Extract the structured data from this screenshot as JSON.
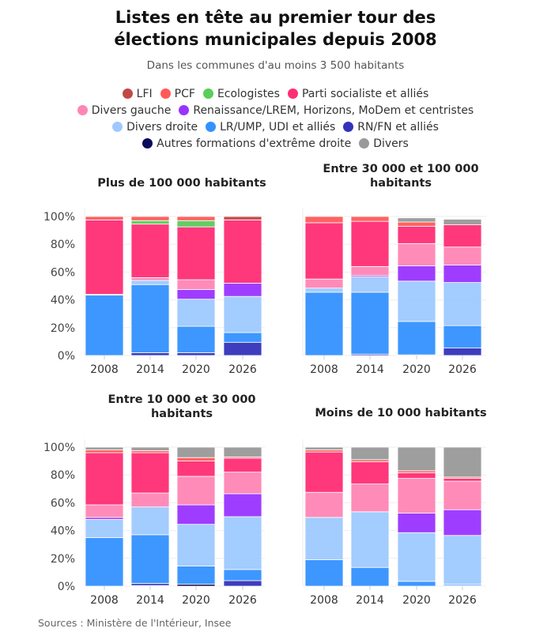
{
  "title": "Listes en tête au premier tour des élections municipales depuis 2008",
  "title_lines": [
    "Listes en tête au premier tour des",
    "élections municipales depuis 2008"
  ],
  "subtitle": "Dans les communes d'au moins 3 500 habitants",
  "source": "Sources : Ministère de l'Intérieur, Insee",
  "legend_rows": [
    [
      0,
      1,
      2,
      3
    ],
    [
      4,
      5
    ],
    [
      6,
      7,
      8
    ],
    [
      9,
      10
    ]
  ],
  "chart_data": {
    "type": "bar",
    "stacked": true,
    "categories": [
      "2008",
      "2014",
      "2020",
      "2026"
    ],
    "y_ticks": [
      "0%",
      "20%",
      "40%",
      "60%",
      "80%",
      "100%"
    ],
    "ylim": [
      0,
      100
    ],
    "series": [
      {
        "name": "Autres formations d'extrême droite",
        "color": "#0b0b5c"
      },
      {
        "name": "RN/FN et alliés",
        "color": "#3333bb"
      },
      {
        "name": "LR/UMP, UDI et alliés",
        "color": "#3392ff"
      },
      {
        "name": "Divers droite",
        "color": "#9fcaff"
      },
      {
        "name": "Renaissance/LREM, Horizons, MoDem et centristes",
        "color": "#9933ff"
      },
      {
        "name": "Divers gauche",
        "color": "#ff85b6"
      },
      {
        "name": "Parti socialiste et alliés",
        "color": "#ff2e74"
      },
      {
        "name": "Ecologistes",
        "color": "#5acd5a"
      },
      {
        "name": "PCF",
        "color": "#ff5a5a"
      },
      {
        "name": "LFI",
        "color": "#c24848"
      },
      {
        "name": "Divers",
        "color": "#999999"
      }
    ],
    "legend_order": [
      9,
      8,
      7,
      6,
      5,
      4,
      3,
      2,
      1,
      0,
      10
    ],
    "panels": [
      {
        "title": [
          "Plus de 100 000 habitants"
        ],
        "values": [
          [
            0,
            0,
            43.5,
            0.5,
            0,
            0,
            53.5,
            0,
            2.5,
            0,
            0
          ],
          [
            0,
            2,
            49,
            3,
            0,
            2,
            38.5,
            2.5,
            3,
            0,
            0
          ],
          [
            0,
            2,
            19,
            19.5,
            7,
            7,
            38,
            4.5,
            3,
            0,
            0
          ],
          [
            0,
            9.5,
            7,
            26,
            9.5,
            0,
            45.5,
            0,
            0,
            2.5,
            0
          ]
        ]
      },
      {
        "title": [
          "Entre 30 000 et 100 000",
          "habitants"
        ],
        "values": [
          [
            0,
            0,
            45.5,
            3,
            0,
            6.5,
            40.5,
            0,
            4.5,
            0,
            0
          ],
          [
            0,
            1,
            44.5,
            11,
            1,
            6.5,
            32.5,
            0,
            3.5,
            0,
            0
          ],
          [
            0.5,
            0,
            24,
            29,
            11,
            16,
            12.5,
            0,
            3,
            0,
            3
          ],
          [
            0,
            5.5,
            16,
            31,
            12.5,
            13,
            16,
            0,
            0,
            0,
            4
          ]
        ]
      },
      {
        "title": [
          "Entre 10 000 et 30 000",
          "habitants"
        ],
        "values": [
          [
            0,
            0,
            35,
            13,
            1.5,
            9,
            37.5,
            0,
            2,
            0,
            2
          ],
          [
            0.5,
            1.5,
            35,
            20,
            0,
            10,
            29,
            0,
            1.5,
            0,
            2.5
          ],
          [
            1.5,
            0,
            13,
            30,
            14,
            20.5,
            11,
            0,
            2.5,
            0,
            7.5
          ],
          [
            0,
            4,
            8,
            38,
            16.5,
            15.5,
            10,
            0,
            1,
            0,
            7
          ]
        ]
      },
      {
        "title": [
          "Moins de 10 000 habitants"
        ],
        "values": [
          [
            0,
            0,
            19,
            30.5,
            0,
            18,
            29,
            0,
            1.5,
            0,
            2
          ],
          [
            0,
            0,
            13.5,
            40,
            0,
            20,
            16,
            0,
            1.5,
            0,
            9
          ],
          [
            0,
            0,
            3.5,
            35,
            14,
            25,
            4,
            0,
            1.5,
            0,
            17
          ],
          [
            0,
            0.5,
            1,
            35,
            18.5,
            20.5,
            2,
            0,
            1,
            0,
            21.5
          ]
        ]
      }
    ]
  }
}
